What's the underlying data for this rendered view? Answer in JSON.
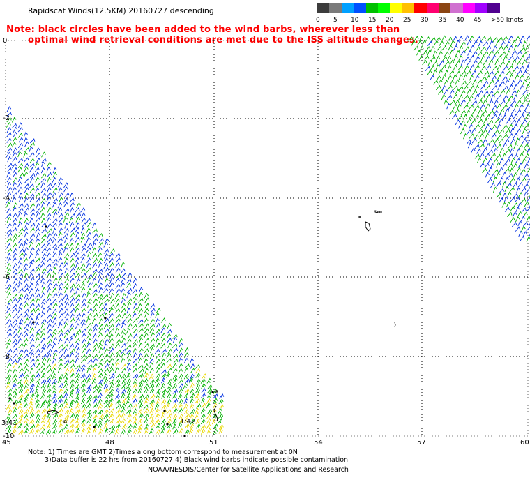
{
  "header": {
    "title": "Rapidscat Winds(12.5KM) 20160727 descending",
    "note_line1": "Note: black circles have been added to the wind barbs, wherever less than",
    "note_line2": "optimal wind retrieval conditions are met due to the ISS altitude changes."
  },
  "legend": {
    "unit": "knots",
    "labels": [
      "0",
      "5",
      "10",
      "15",
      "20",
      "25",
      "30",
      "35",
      "40",
      "45",
      ">50 knots"
    ],
    "colors": [
      "#3c3c3c",
      "#7a7a7a",
      "#00a0ff",
      "#0050ff",
      "#00c000",
      "#00ff00",
      "#ffff00",
      "#ffc000",
      "#ff0000",
      "#ff0070",
      "#8b4513",
      "#d070d0",
      "#ff00ff",
      "#a000ff",
      "#500090"
    ]
  },
  "map": {
    "lon_ticks": [
      "45",
      "48",
      "51",
      "54",
      "57",
      "60"
    ],
    "lat_ticks": [
      "0",
      "-2",
      "-4",
      "-6",
      "-8",
      "-10"
    ],
    "time_labels": [
      "3:41",
      "1:42"
    ]
  },
  "footer": {
    "line1": "Note: 1) Times are GMT 2)Times along bottom correspond to measurement at 0N",
    "line2": "3)Data buffer is 22 hrs from 20160727 4) Black wind barbs indicate possible contamination",
    "credit": "NOAA/NESDIS/Center for Satellite Applications and Research"
  }
}
